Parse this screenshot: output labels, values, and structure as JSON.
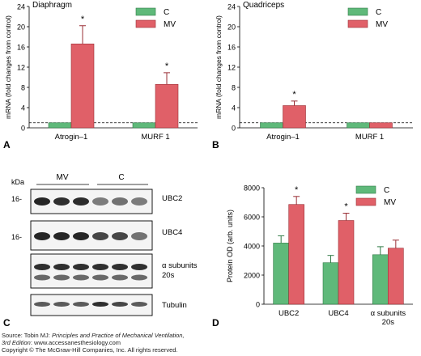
{
  "colors": {
    "control": "#5fb97a",
    "mv": "#e06068",
    "control_stroke": "#2f7a45",
    "mv_stroke": "#9a2f36"
  },
  "panels": {
    "A": {
      "letter": "A"
    },
    "B": {
      "letter": "B"
    },
    "C": {
      "letter": "C"
    },
    "D": {
      "letter": "D"
    }
  },
  "blot": {
    "kda_label": "kDa",
    "group_mv": "MV",
    "group_c": "C",
    "marker_1": "16-",
    "marker_2": "16-",
    "row_labels": [
      "UBC2",
      "UBC4",
      "α subunits",
      "20s",
      "Tubulin"
    ]
  },
  "chart_data": [
    {
      "id": "A",
      "type": "bar",
      "title": "Diaphragm",
      "ylabel": "mRNA (fold changes from control)",
      "xlabel": "",
      "ylim": [
        0,
        24
      ],
      "yticks": [
        0,
        4,
        8,
        12,
        16,
        20,
        24
      ],
      "yticklabels": [
        "0",
        "4",
        "8",
        "12",
        "16",
        "20",
        "24"
      ],
      "categories": [
        "Atrogin–1",
        "MURF 1"
      ],
      "series": [
        {
          "name": "C",
          "values": [
            1.0,
            1.0
          ],
          "errors": [
            0,
            0
          ]
        },
        {
          "name": "MV",
          "values": [
            16.6,
            8.6
          ],
          "errors": [
            3.6,
            2.3
          ]
        }
      ],
      "significance": [
        {
          "category": "Atrogin–1",
          "series": "MV",
          "text": "*"
        },
        {
          "category": "MURF 1",
          "series": "MV",
          "text": "*"
        }
      ],
      "reference_line": 1.0,
      "legend_position": "top-right",
      "grid": false
    },
    {
      "id": "B",
      "type": "bar",
      "title": "Quadriceps",
      "ylabel": "mRNA (fold changes from control)",
      "xlabel": "",
      "ylim": [
        0,
        24
      ],
      "yticks": [
        0,
        4,
        8,
        12,
        16,
        20,
        24
      ],
      "yticklabels": [
        "0",
        "4",
        "8",
        "12",
        "16",
        "20",
        "24"
      ],
      "categories": [
        "Atrogin–1",
        "MURF 1"
      ],
      "series": [
        {
          "name": "C",
          "values": [
            1.0,
            1.0
          ],
          "errors": [
            0,
            0
          ]
        },
        {
          "name": "MV",
          "values": [
            4.4,
            1.0
          ],
          "errors": [
            0.9,
            0
          ]
        }
      ],
      "significance": [
        {
          "category": "Atrogin–1",
          "series": "MV",
          "text": "*"
        }
      ],
      "reference_line": 1.0,
      "legend_position": "top-right",
      "grid": false
    },
    {
      "id": "D",
      "type": "bar",
      "title": "",
      "ylabel": "Protein OD (arb. units)",
      "xlabel": "",
      "ylim": [
        0,
        8000
      ],
      "yticks": [
        0,
        2000,
        4000,
        6000,
        8000
      ],
      "yticklabels": [
        "0",
        "2000",
        "4000",
        "6000",
        "8000"
      ],
      "categories": [
        "UBC2",
        "UBC4",
        "α subunits 20s"
      ],
      "category_lines": [
        [
          "UBC2"
        ],
        [
          "UBC4"
        ],
        [
          "α subunits",
          "20s"
        ]
      ],
      "series": [
        {
          "name": "C",
          "values": [
            4200,
            2850,
            3400
          ],
          "errors": [
            500,
            500,
            550
          ]
        },
        {
          "name": "MV",
          "values": [
            6850,
            5750,
            3850
          ],
          "errors": [
            550,
            500,
            550
          ]
        }
      ],
      "significance": [
        {
          "category": "UBC2",
          "series": "MV",
          "text": "*"
        },
        {
          "category": "UBC4",
          "series": "MV",
          "text": "*"
        }
      ],
      "legend_position": "top-right",
      "grid": false
    }
  ],
  "footer": {
    "line1_prefix": "Source: Tobin MJ: ",
    "line1_italic": "Principles and Practice of Mechanical Ventilation,",
    "line2_italic": "3rd Edition",
    "line2_suffix": ": www.accessanesthesiology.com",
    "line3": "Copyright © The McGraw-Hill Companies, Inc. All rights reserved."
  }
}
